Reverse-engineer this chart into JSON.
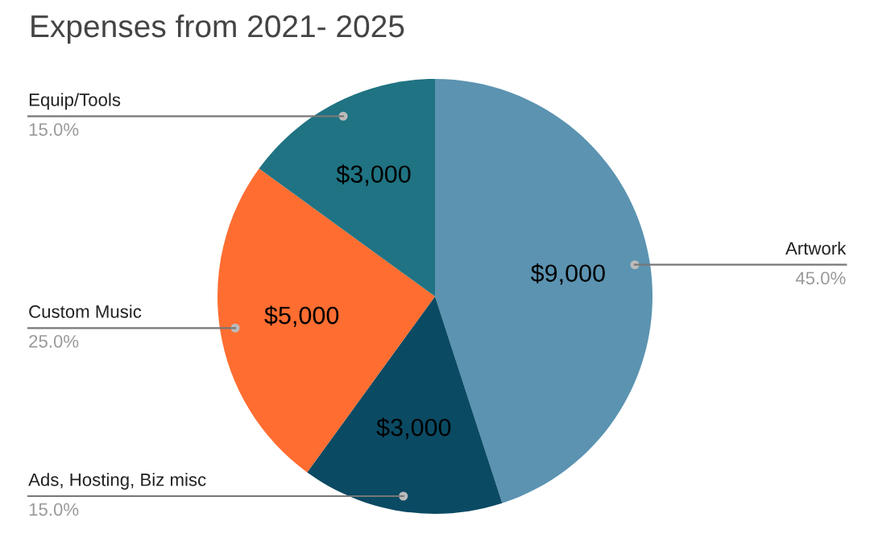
{
  "chart_data": {
    "type": "pie",
    "title": "Expenses from 2021- 2025",
    "categories": [
      "Artwork",
      "Ads, Hosting, Biz misc",
      "Custom Music",
      "Equip/Tools"
    ],
    "values": [
      9000,
      3000,
      5000,
      3000
    ],
    "value_labels": [
      "$9,000",
      "$3,000",
      "$5,000",
      "$3,000"
    ],
    "colors": [
      "#5b93b1",
      "#0b4a63",
      "#ff6d31",
      "#1f7382"
    ],
    "annotations": [
      "45.0%",
      "15.0%",
      "25.0%",
      "15.0%"
    ],
    "legend": false
  }
}
